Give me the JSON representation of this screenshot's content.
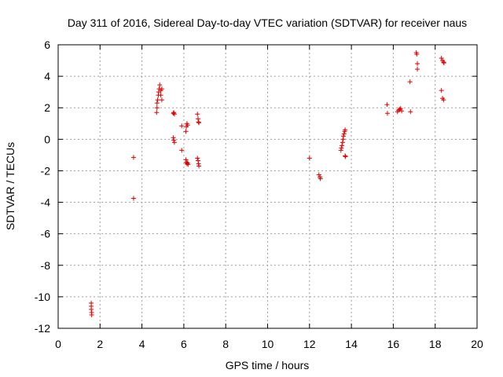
{
  "chart_data": {
    "type": "scatter",
    "title": "Day 311 of 2016, Sidereal Day-to-day VTEC variation (SDTVAR) for receiver naus",
    "xlabel": "GPS time / hours",
    "ylabel": "SDTVAR / TECUs",
    "xlim": [
      0,
      20
    ],
    "ylim": [
      -12,
      6
    ],
    "xticks": [
      "0",
      "2",
      "4",
      "6",
      "8",
      "10",
      "12",
      "14",
      "16",
      "18",
      "20"
    ],
    "yticks": [
      "-12",
      "-10",
      "-8",
      "-6",
      "-4",
      "-2",
      "0",
      "2",
      "4",
      "6"
    ],
    "grid": true,
    "marker": "+",
    "color": "#e00000",
    "series": [
      {
        "name": "SDTVAR",
        "points": [
          [
            1.58,
            -10.4
          ],
          [
            1.58,
            -10.6
          ],
          [
            1.58,
            -10.8
          ],
          [
            1.6,
            -11.0
          ],
          [
            1.6,
            -11.15
          ],
          [
            3.6,
            -1.15
          ],
          [
            3.6,
            -3.75
          ],
          [
            4.7,
            1.7
          ],
          [
            4.72,
            2.0
          ],
          [
            4.72,
            2.3
          ],
          [
            4.75,
            2.5
          ],
          [
            4.78,
            2.8
          ],
          [
            4.8,
            3.0
          ],
          [
            4.82,
            3.2
          ],
          [
            4.85,
            3.45
          ],
          [
            4.9,
            3.1
          ],
          [
            4.9,
            2.8
          ],
          [
            4.95,
            2.5
          ],
          [
            4.95,
            3.2
          ],
          [
            5.5,
            1.65
          ],
          [
            5.52,
            1.7
          ],
          [
            5.55,
            1.6
          ],
          [
            5.52,
            -0.05
          ],
          [
            5.55,
            -0.2
          ],
          [
            5.5,
            0.1
          ],
          [
            5.9,
            0.85
          ],
          [
            5.9,
            -0.7
          ],
          [
            6.1,
            0.5
          ],
          [
            6.12,
            0.8
          ],
          [
            6.15,
            1.0
          ],
          [
            6.18,
            0.9
          ],
          [
            6.1,
            -1.3
          ],
          [
            6.12,
            -1.45
          ],
          [
            6.15,
            -1.55
          ],
          [
            6.18,
            -1.5
          ],
          [
            6.2,
            -1.6
          ],
          [
            6.65,
            1.6
          ],
          [
            6.68,
            1.3
          ],
          [
            6.7,
            1.1
          ],
          [
            6.72,
            1.05
          ],
          [
            6.65,
            -1.2
          ],
          [
            6.68,
            -1.35
          ],
          [
            6.7,
            -1.55
          ],
          [
            6.72,
            -1.7
          ],
          [
            12.0,
            -1.2
          ],
          [
            12.45,
            -2.25
          ],
          [
            12.5,
            -2.4
          ],
          [
            12.52,
            -2.5
          ],
          [
            13.5,
            -0.7
          ],
          [
            13.52,
            -0.55
          ],
          [
            13.55,
            -0.4
          ],
          [
            13.58,
            -0.2
          ],
          [
            13.6,
            0.0
          ],
          [
            13.62,
            0.2
          ],
          [
            13.65,
            0.35
          ],
          [
            13.68,
            0.5
          ],
          [
            13.7,
            0.6
          ],
          [
            13.7,
            -1.05
          ],
          [
            13.72,
            -1.1
          ],
          [
            15.7,
            2.2
          ],
          [
            15.72,
            1.65
          ],
          [
            16.2,
            1.75
          ],
          [
            16.25,
            1.85
          ],
          [
            16.3,
            1.9
          ],
          [
            16.35,
            1.95
          ],
          [
            16.4,
            1.8
          ],
          [
            16.8,
            3.65
          ],
          [
            16.82,
            1.75
          ],
          [
            17.1,
            5.5
          ],
          [
            17.12,
            5.4
          ],
          [
            17.15,
            4.8
          ],
          [
            17.15,
            4.45
          ],
          [
            18.3,
            5.15
          ],
          [
            18.35,
            5.0
          ],
          [
            18.4,
            4.9
          ],
          [
            18.42,
            4.85
          ],
          [
            18.3,
            3.1
          ],
          [
            18.35,
            2.6
          ],
          [
            18.4,
            2.5
          ]
        ]
      }
    ]
  }
}
